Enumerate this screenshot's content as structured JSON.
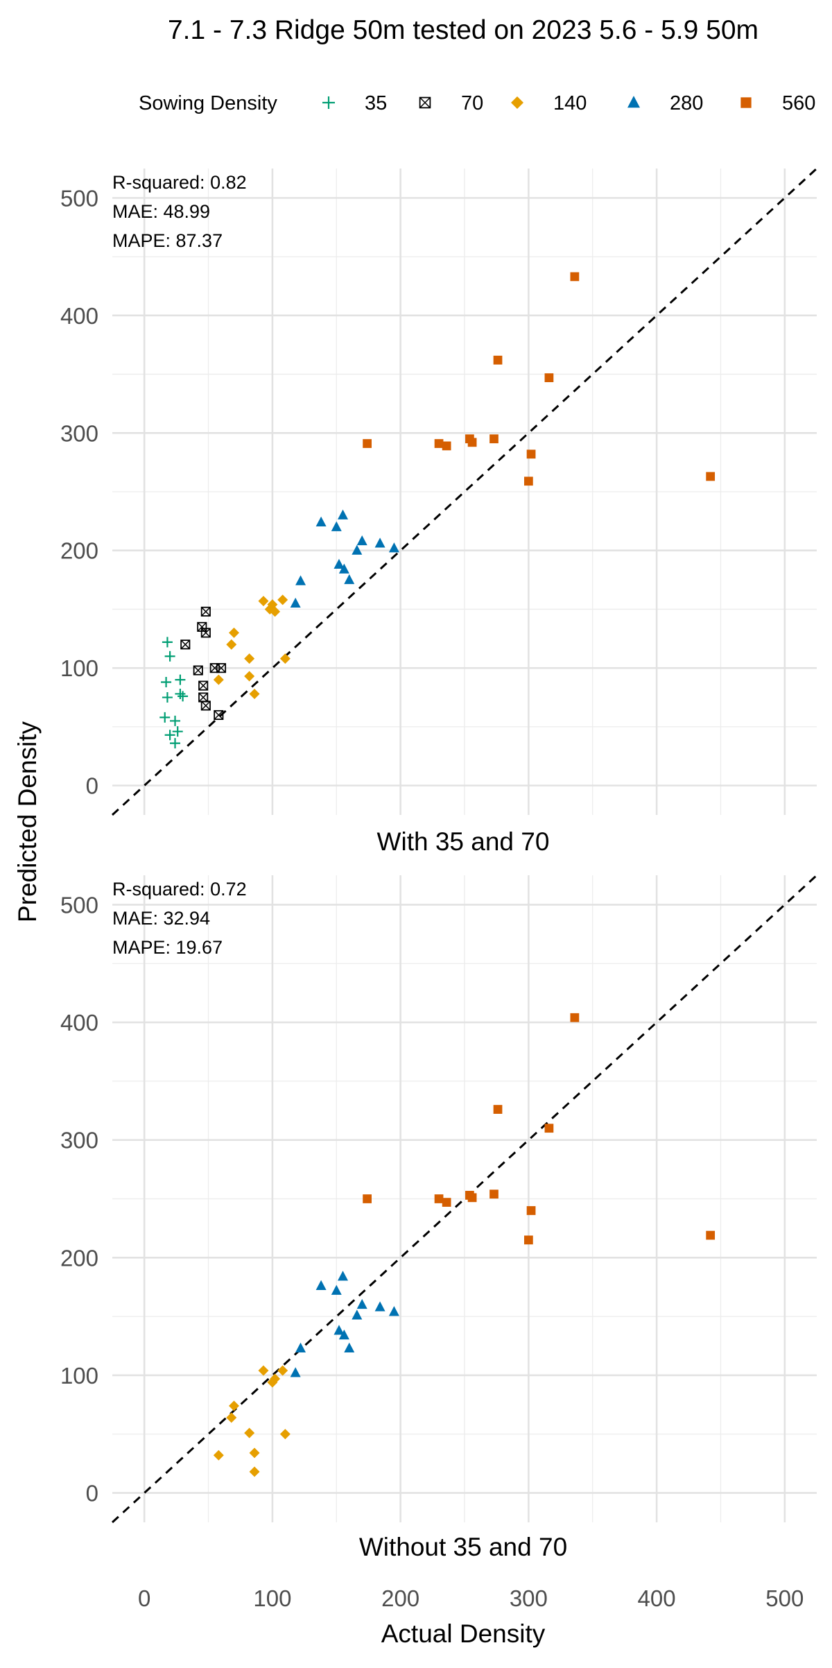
{
  "chart_data": {
    "type": "scatter",
    "title": "7.1 - 7.3 Ridge 50m  tested on 2023 5.6 - 5.9 50m",
    "xlabel": "Actual Density",
    "ylabel": "Predicted Density",
    "xlim": [
      -25,
      525
    ],
    "ylim": [
      -25,
      525
    ],
    "x_ticks": [
      0,
      100,
      200,
      300,
      400,
      500
    ],
    "y_ticks": [
      0,
      100,
      200,
      300,
      400,
      500
    ],
    "grid": true,
    "reference_line": "y = x (dashed)",
    "legend": {
      "title": "Sowing Density",
      "placement": "top",
      "entries": [
        {
          "label": "35",
          "color": "#009E73",
          "marker": "plus"
        },
        {
          "label": "70",
          "color": "#000000",
          "marker": "square-cross"
        },
        {
          "label": "140",
          "color": "#E69F00",
          "marker": "diamond"
        },
        {
          "label": "280",
          "color": "#0072B2",
          "marker": "triangle"
        },
        {
          "label": "560",
          "color": "#D55E00",
          "marker": "square"
        }
      ]
    },
    "panels": [
      {
        "strip_label": "With 35 and 70",
        "stats": [
          {
            "label": "R-squared:",
            "value": "0.82"
          },
          {
            "label": "MAE:",
            "value": "48.99"
          },
          {
            "label": "MAPE:",
            "value": "87.37"
          }
        ],
        "series": [
          {
            "name": "35",
            "points": [
              [
                18,
                122
              ],
              [
                20,
                110
              ],
              [
                17,
                88
              ],
              [
                28,
                90
              ],
              [
                18,
                75
              ],
              [
                28,
                78
              ],
              [
                30,
                76
              ],
              [
                16,
                58
              ],
              [
                24,
                55
              ],
              [
                20,
                43
              ],
              [
                26,
                46
              ],
              [
                24,
                36
              ]
            ]
          },
          {
            "name": "70",
            "points": [
              [
                48,
                148
              ],
              [
                45,
                135
              ],
              [
                48,
                130
              ],
              [
                32,
                120
              ],
              [
                55,
                100
              ],
              [
                60,
                100
              ],
              [
                42,
                98
              ],
              [
                46,
                85
              ],
              [
                46,
                75
              ],
              [
                48,
                68
              ],
              [
                58,
                60
              ]
            ]
          },
          {
            "name": "140",
            "points": [
              [
                93,
                157
              ],
              [
                100,
                154
              ],
              [
                108,
                158
              ],
              [
                98,
                150
              ],
              [
                102,
                148
              ],
              [
                70,
                130
              ],
              [
                68,
                120
              ],
              [
                82,
                108
              ],
              [
                110,
                108
              ],
              [
                82,
                93
              ],
              [
                58,
                90
              ],
              [
                86,
                78
              ]
            ]
          },
          {
            "name": "280",
            "points": [
              [
                155,
                230
              ],
              [
                138,
                224
              ],
              [
                150,
                220
              ],
              [
                170,
                208
              ],
              [
                184,
                206
              ],
              [
                195,
                202
              ],
              [
                166,
                200
              ],
              [
                152,
                188
              ],
              [
                156,
                184
              ],
              [
                122,
                174
              ],
              [
                160,
                175
              ],
              [
                118,
                155
              ]
            ]
          },
          {
            "name": "560",
            "points": [
              [
                336,
                433
              ],
              [
                276,
                362
              ],
              [
                316,
                347
              ],
              [
                174,
                291
              ],
              [
                230,
                291
              ],
              [
                236,
                289
              ],
              [
                254,
                295
              ],
              [
                256,
                292
              ],
              [
                273,
                295
              ],
              [
                302,
                282
              ],
              [
                300,
                259
              ],
              [
                442,
                263
              ]
            ]
          }
        ]
      },
      {
        "strip_label": "Without 35 and 70",
        "stats": [
          {
            "label": "R-squared:",
            "value": "0.72"
          },
          {
            "label": "MAE:",
            "value": "32.94"
          },
          {
            "label": "MAPE:",
            "value": "19.67"
          }
        ],
        "series": [
          {
            "name": "140",
            "points": [
              [
                93,
                104
              ],
              [
                102,
                97
              ],
              [
                108,
                104
              ],
              [
                100,
                94
              ],
              [
                70,
                74
              ],
              [
                68,
                64
              ],
              [
                82,
                51
              ],
              [
                110,
                50
              ],
              [
                86,
                34
              ],
              [
                58,
                32
              ],
              [
                86,
                18
              ]
            ]
          },
          {
            "name": "280",
            "points": [
              [
                155,
                184
              ],
              [
                138,
                176
              ],
              [
                150,
                172
              ],
              [
                170,
                160
              ],
              [
                184,
                158
              ],
              [
                166,
                151
              ],
              [
                195,
                154
              ],
              [
                152,
                138
              ],
              [
                156,
                134
              ],
              [
                122,
                123
              ],
              [
                160,
                123
              ],
              [
                118,
                102
              ]
            ]
          },
          {
            "name": "560",
            "points": [
              [
                336,
                404
              ],
              [
                276,
                326
              ],
              [
                316,
                310
              ],
              [
                174,
                250
              ],
              [
                230,
                250
              ],
              [
                236,
                247
              ],
              [
                254,
                253
              ],
              [
                256,
                251
              ],
              [
                273,
                254
              ],
              [
                302,
                240
              ],
              [
                300,
                215
              ],
              [
                442,
                219
              ]
            ]
          }
        ]
      }
    ]
  }
}
